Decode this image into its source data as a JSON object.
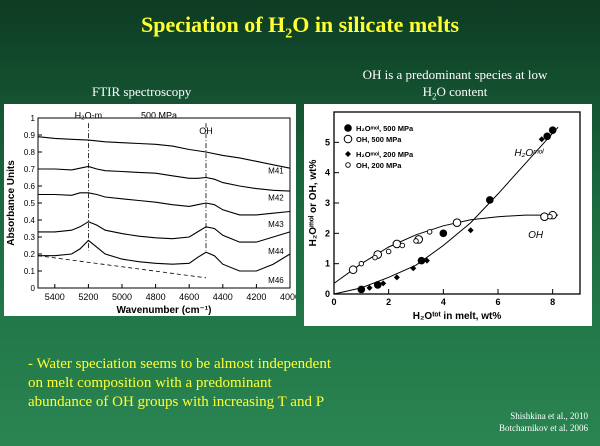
{
  "title_pre": "Speciation of H",
  "title_sub": "2",
  "title_post": "O in silicate melts",
  "caption_left": "FTIR spectroscopy",
  "caption_right_line1": "OH is a predominant species at low",
  "caption_right_pre": "H",
  "caption_right_sub": "2",
  "caption_right_post": "O content",
  "bottom_line1": "- Water speciation seems to be almost independent",
  "bottom_line2": "on melt composition with a predominant",
  "bottom_line3": "abundance of OH groups with increasing T and P",
  "ref1": "Shishkina et al., 2010",
  "ref2": "Botcharnikov et al. 2006",
  "chart_data": [
    {
      "type": "line",
      "ylabel": "Absorbance Units",
      "xlabel": "Wavenumber (cm⁻¹)",
      "xlim": [
        5500,
        4000
      ],
      "ylim": [
        0,
        1.0
      ],
      "xticks": [
        5400,
        5200,
        5000,
        4800,
        4600,
        4400,
        4200,
        4000
      ],
      "yticks": [
        0,
        0.1,
        0.2,
        0.3,
        0.4,
        0.5,
        0.6,
        0.7,
        0.8,
        0.9,
        1.0
      ],
      "annotations": {
        "pressure": "500 MPa",
        "h2om": "H₂O-m",
        "oh": "OH"
      },
      "series": [
        {
          "name": "M41",
          "x": [
            5500,
            5400,
            5300,
            5200,
            5100,
            5000,
            4900,
            4800,
            4700,
            4600,
            4500,
            4400,
            4300,
            4200,
            4100,
            4000
          ],
          "y": [
            0.89,
            0.88,
            0.875,
            0.87,
            0.86,
            0.855,
            0.85,
            0.845,
            0.835,
            0.815,
            0.8,
            0.78,
            0.765,
            0.745,
            0.725,
            0.705
          ]
        },
        {
          "name": "M42",
          "x": [
            5500,
            5400,
            5300,
            5250,
            5200,
            5150,
            5100,
            5000,
            4900,
            4800,
            4700,
            4600,
            4550,
            4500,
            4450,
            4400,
            4300,
            4200,
            4100,
            4000
          ],
          "y": [
            0.7,
            0.7,
            0.695,
            0.705,
            0.715,
            0.7,
            0.69,
            0.685,
            0.68,
            0.675,
            0.66,
            0.645,
            0.645,
            0.65,
            0.64,
            0.62,
            0.6,
            0.585,
            0.575,
            0.57
          ]
        },
        {
          "name": "M43",
          "x": [
            5500,
            5400,
            5300,
            5250,
            5200,
            5150,
            5100,
            5000,
            4900,
            4800,
            4700,
            4600,
            4550,
            4500,
            4450,
            4400,
            4300,
            4200,
            4100,
            4000
          ],
          "y": [
            0.55,
            0.55,
            0.545,
            0.56,
            0.56,
            0.55,
            0.535,
            0.525,
            0.515,
            0.505,
            0.49,
            0.48,
            0.49,
            0.5,
            0.49,
            0.46,
            0.43,
            0.43,
            0.44,
            0.45
          ]
        },
        {
          "name": "M44",
          "x": [
            5500,
            5400,
            5300,
            5250,
            5200,
            5150,
            5100,
            5000,
            4900,
            4800,
            4700,
            4600,
            4550,
            4500,
            4450,
            4400,
            4300,
            4200,
            4100,
            4000
          ],
          "y": [
            0.33,
            0.33,
            0.34,
            0.36,
            0.39,
            0.37,
            0.34,
            0.32,
            0.305,
            0.295,
            0.29,
            0.3,
            0.33,
            0.36,
            0.35,
            0.31,
            0.27,
            0.27,
            0.3,
            0.33
          ]
        },
        {
          "name": "M46",
          "x": [
            5500,
            5400,
            5300,
            5250,
            5200,
            5150,
            5100,
            5000,
            4900,
            4800,
            4700,
            4600,
            4550,
            4500,
            4450,
            4400,
            4300,
            4200,
            4100,
            4000
          ],
          "y": [
            0.19,
            0.19,
            0.2,
            0.23,
            0.28,
            0.24,
            0.2,
            0.17,
            0.155,
            0.145,
            0.14,
            0.145,
            0.18,
            0.21,
            0.19,
            0.14,
            0.1,
            0.1,
            0.14,
            0.2
          ]
        }
      ]
    },
    {
      "type": "scatter",
      "xlabel": "H₂Oᵗᵒᵗ in melt, wt%",
      "ylabel": "H₂Oᵐᵒˡ or OH, wt%",
      "xlim": [
        0,
        9
      ],
      "ylim": [
        0,
        6
      ],
      "xticks": [
        0,
        2,
        4,
        6,
        8
      ],
      "yticks": [
        0,
        1,
        2,
        3,
        4,
        5
      ],
      "curve_labels": {
        "h2omol": "H₂Oᵐᵒˡ",
        "oh": "OH"
      },
      "legend": [
        "H₂Oᵐᵒˡ, 500 MPa",
        "OH,      500 MPa",
        "H₂Oᵐᵒˡ, 200 MPa",
        "OH,      200 MPa"
      ],
      "series": [
        {
          "name": "H₂Oᵐᵒˡ, 500 MPa",
          "marker": "filled-circle-large",
          "x": [
            1.0,
            1.6,
            3.2,
            4.0,
            5.7,
            7.8,
            8.0
          ],
          "y": [
            0.15,
            0.3,
            1.1,
            2.0,
            3.1,
            5.2,
            5.4
          ]
        },
        {
          "name": "OH,      500 MPa",
          "marker": "open-circle-large",
          "x": [
            0.7,
            1.6,
            2.3,
            3.1,
            4.5,
            7.7,
            8.0
          ],
          "y": [
            0.8,
            1.3,
            1.65,
            1.8,
            2.35,
            2.55,
            2.6
          ]
        },
        {
          "name": "H₂Oᵐᵒˡ, 200 MPa",
          "marker": "filled-diamond",
          "x": [
            1.3,
            1.8,
            2.3,
            2.9,
            3.4,
            5.0,
            7.6
          ],
          "y": [
            0.2,
            0.35,
            0.55,
            0.85,
            1.1,
            2.1,
            5.1
          ]
        },
        {
          "name": "OH,      200 MPa",
          "marker": "open-circle-small",
          "x": [
            1.0,
            1.5,
            2.0,
            2.5,
            3.0,
            3.5,
            7.9
          ],
          "y": [
            1.0,
            1.2,
            1.4,
            1.6,
            1.75,
            2.05,
            2.55
          ]
        }
      ],
      "fit_lines": {
        "h2omol": {
          "x": [
            0,
            1,
            2,
            3,
            4,
            5,
            6,
            7,
            8.2
          ],
          "y": [
            0,
            0.2,
            0.55,
            0.95,
            1.6,
            2.35,
            3.3,
            4.3,
            5.5
          ]
        },
        "oh": {
          "x": [
            0,
            1,
            2,
            3,
            4,
            5,
            6,
            7,
            8.2
          ],
          "y": [
            0.35,
            1.0,
            1.55,
            1.95,
            2.25,
            2.45,
            2.55,
            2.6,
            2.6
          ]
        }
      }
    }
  ]
}
